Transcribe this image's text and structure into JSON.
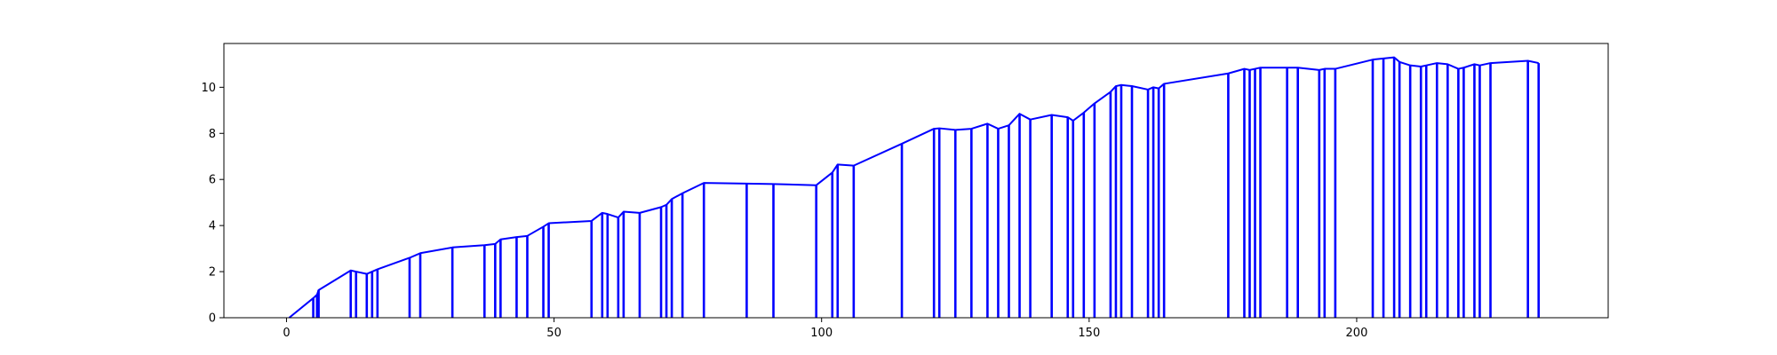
{
  "chart_data": {
    "type": "line",
    "title": "",
    "xlabel": "",
    "ylabel": "",
    "xlim": [
      -11.7,
      247
    ],
    "ylim": [
      0,
      11.9
    ],
    "x_ticks": [
      0,
      50,
      100,
      150,
      200
    ],
    "y_ticks": [
      0,
      2,
      4,
      6,
      8,
      10
    ],
    "x_tick_labels": [
      "0",
      "50",
      "100",
      "150",
      "200"
    ],
    "y_tick_labels": [
      "0",
      "2",
      "4",
      "6",
      "8",
      "10"
    ],
    "grid": false,
    "legend": "none",
    "series_color": "#0000ff",
    "series": [
      {
        "style": "stems-with-envelope",
        "points": [
          [
            0.5,
            0.0
          ],
          [
            5.0,
            0.85
          ],
          [
            5.7,
            1.0
          ],
          [
            6.0,
            1.2
          ],
          [
            12.0,
            2.05
          ],
          [
            13.0,
            2.0
          ],
          [
            15.0,
            1.9
          ],
          [
            16.0,
            2.0
          ],
          [
            17.0,
            2.1
          ],
          [
            23.0,
            2.6
          ],
          [
            25.0,
            2.8
          ],
          [
            31.0,
            3.05
          ],
          [
            37.0,
            3.15
          ],
          [
            39.0,
            3.2
          ],
          [
            40.0,
            3.4
          ],
          [
            43.0,
            3.5
          ],
          [
            45.0,
            3.55
          ],
          [
            48.0,
            3.95
          ],
          [
            49.0,
            4.1
          ],
          [
            57.0,
            4.2
          ],
          [
            59.0,
            4.55
          ],
          [
            60.0,
            4.5
          ],
          [
            62.0,
            4.35
          ],
          [
            63.0,
            4.6
          ],
          [
            66.0,
            4.55
          ],
          [
            70.0,
            4.8
          ],
          [
            71.0,
            4.9
          ],
          [
            72.0,
            5.15
          ],
          [
            74.0,
            5.4
          ],
          [
            78.0,
            5.85
          ],
          [
            86.0,
            5.82
          ],
          [
            91.0,
            5.8
          ],
          [
            99.0,
            5.75
          ],
          [
            102.0,
            6.3
          ],
          [
            103.0,
            6.65
          ],
          [
            106.0,
            6.6
          ],
          [
            115.0,
            7.55
          ],
          [
            121.0,
            8.2
          ],
          [
            122.0,
            8.22
          ],
          [
            125.0,
            8.15
          ],
          [
            128.0,
            8.2
          ],
          [
            131.0,
            8.42
          ],
          [
            133.0,
            8.2
          ],
          [
            135.0,
            8.35
          ],
          [
            137.0,
            8.85
          ],
          [
            139.0,
            8.6
          ],
          [
            143.0,
            8.8
          ],
          [
            146.0,
            8.7
          ],
          [
            147.0,
            8.55
          ],
          [
            149.0,
            8.9
          ],
          [
            151.0,
            9.3
          ],
          [
            154.0,
            9.8
          ],
          [
            155.0,
            10.05
          ],
          [
            156.0,
            10.1
          ],
          [
            158.0,
            10.05
          ],
          [
            161.0,
            9.9
          ],
          [
            162.0,
            10.0
          ],
          [
            163.0,
            9.95
          ],
          [
            164.0,
            10.15
          ],
          [
            176.0,
            10.6
          ],
          [
            179.0,
            10.8
          ],
          [
            180.0,
            10.75
          ],
          [
            181.0,
            10.8
          ],
          [
            182.0,
            10.85
          ],
          [
            187.0,
            10.85
          ],
          [
            189.0,
            10.85
          ],
          [
            193.0,
            10.75
          ],
          [
            194.0,
            10.8
          ],
          [
            196.0,
            10.8
          ],
          [
            203.0,
            11.2
          ],
          [
            205.0,
            11.25
          ],
          [
            207.0,
            11.3
          ],
          [
            208.0,
            11.1
          ],
          [
            210.0,
            10.95
          ],
          [
            212.0,
            10.9
          ],
          [
            213.0,
            10.95
          ],
          [
            215.0,
            11.05
          ],
          [
            217.0,
            11.0
          ],
          [
            219.0,
            10.8
          ],
          [
            220.0,
            10.85
          ],
          [
            222.0,
            11.0
          ],
          [
            223.0,
            10.95
          ],
          [
            225.0,
            11.05
          ],
          [
            232.0,
            11.15
          ],
          [
            234.0,
            11.05
          ]
        ]
      }
    ]
  }
}
